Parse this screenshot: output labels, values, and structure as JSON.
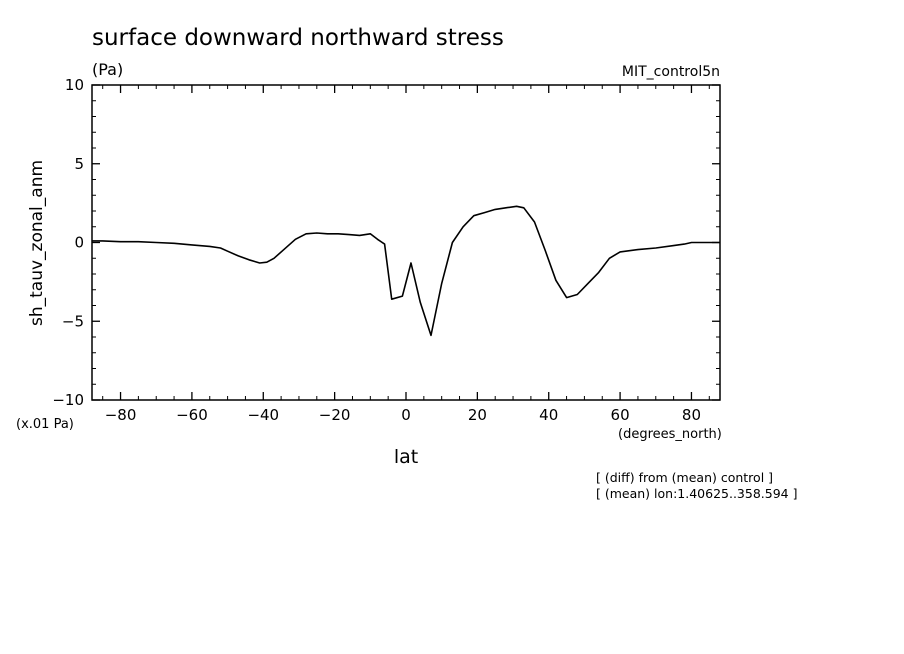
{
  "header": {
    "title": "surface downward northward stress",
    "units": "(Pa)",
    "dataset": "MIT_control5n"
  },
  "notes": {
    "scale": "(x.01 Pa)",
    "xunits": "(degrees_north)",
    "line1": "[ (diff) from (mean) control ]",
    "line2": "[ (mean) lon:1.40625..358.594 ]"
  },
  "chart_data": {
    "type": "line",
    "title": "surface downward northward stress",
    "xlabel": "lat",
    "ylabel": "sh_tauv_zonal_anm",
    "xlim": [
      -88,
      88
    ],
    "ylim": [
      -10,
      10
    ],
    "xticks": [
      -80,
      -60,
      -40,
      -20,
      0,
      20,
      40,
      60,
      80
    ],
    "yticks": [
      -10,
      -5,
      0,
      5,
      10
    ],
    "xtick_labels": [
      "−80",
      "−60",
      "−40",
      "−20",
      "0",
      "20",
      "40",
      "60",
      "80"
    ],
    "ytick_labels": [
      "−10",
      "−5",
      "0",
      "5",
      "10"
    ],
    "grid": false,
    "series": [
      {
        "x": [
          -88,
          -85,
          -80,
          -75,
          -70,
          -65,
          -60,
          -55,
          -52,
          -50,
          -47,
          -44,
          -41,
          -39,
          -37,
          -34,
          -31,
          -28,
          -25,
          -22,
          -19,
          -16,
          -13,
          -10,
          -8,
          -6,
          -4,
          -1,
          1.4,
          4,
          7,
          10,
          13,
          16,
          19,
          22,
          25,
          28,
          31,
          33,
          36,
          39,
          42,
          45,
          48,
          51,
          54,
          57,
          60,
          65,
          70,
          75,
          78,
          80,
          85,
          88
        ],
        "y": [
          0.1,
          0.1,
          0.05,
          0.05,
          0.0,
          -0.05,
          -0.15,
          -0.25,
          -0.35,
          -0.55,
          -0.85,
          -1.1,
          -1.3,
          -1.25,
          -1.0,
          -0.4,
          0.2,
          0.55,
          0.6,
          0.55,
          0.55,
          0.5,
          0.45,
          0.55,
          0.2,
          -0.1,
          -3.6,
          -3.4,
          -1.3,
          -3.8,
          -5.9,
          -2.6,
          0.0,
          1.0,
          1.7,
          1.9,
          2.1,
          2.2,
          2.3,
          2.2,
          1.3,
          -0.5,
          -2.4,
          -3.5,
          -3.3,
          -2.6,
          -1.9,
          -1.0,
          -0.6,
          -0.45,
          -0.35,
          -0.2,
          -0.1,
          0.0,
          0.0,
          0.0
        ]
      }
    ]
  }
}
